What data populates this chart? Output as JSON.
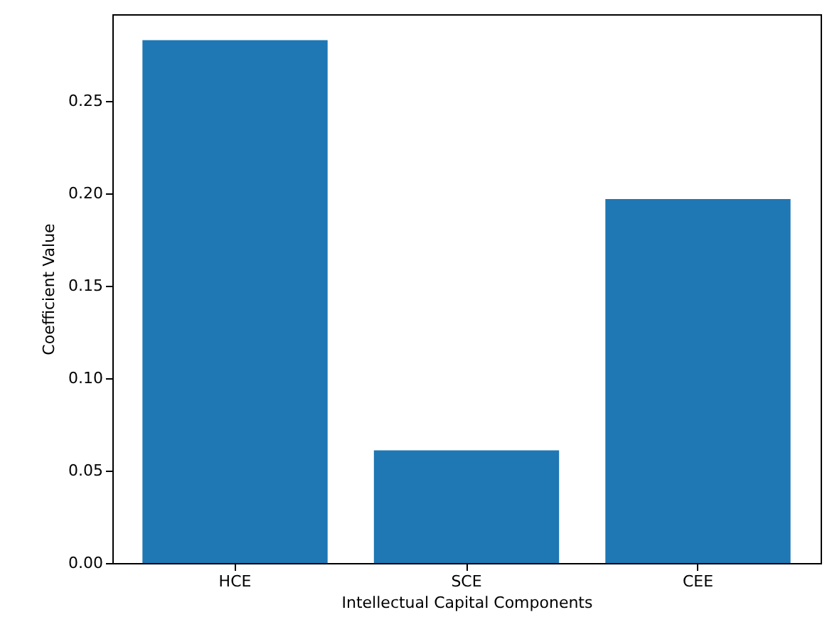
{
  "chart_data": {
    "type": "bar",
    "xlabel": "Intellectual Capital Components",
    "ylabel": "Coefficient Value",
    "categories": [
      "HCE",
      "SCE",
      "CEE"
    ],
    "values": [
      0.283,
      0.061,
      0.197
    ],
    "color": "#1f77b4",
    "ylim": [
      0,
      0.297
    ],
    "yticks": [
      {
        "value": 0,
        "label": "0.00"
      },
      0.05,
      {
        "value": 0.1,
        "label": "0.10"
      },
      0.15,
      {
        "value": 0.2,
        "label": "0.20"
      },
      0.25
    ],
    "grid": false
  }
}
